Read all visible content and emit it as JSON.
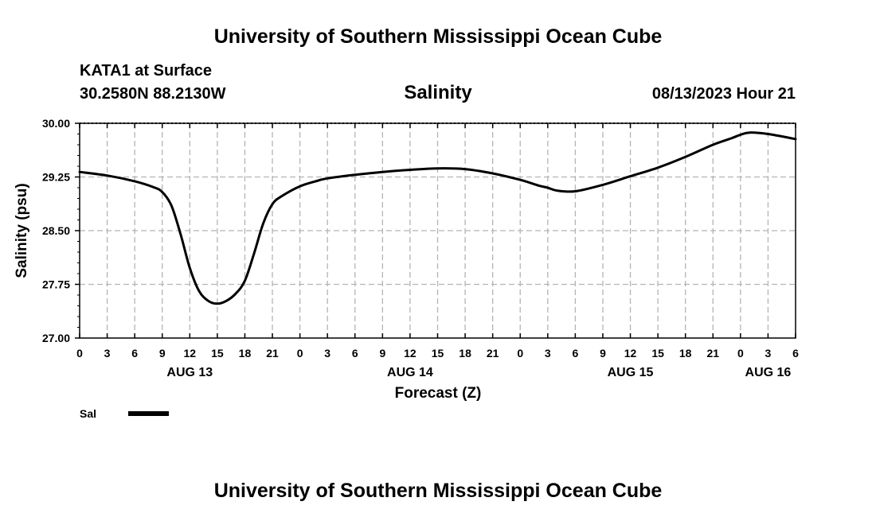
{
  "header": {
    "title": "University of Southern Mississippi Ocean Cube",
    "station": "KATA1 at Surface",
    "coords": "30.2580N  88.2130W",
    "datetime": "08/13/2023 Hour 21",
    "footer_title": "University of Southern Mississippi Ocean Cube"
  },
  "chart_data": {
    "type": "line",
    "title": "Salinity",
    "xlabel": "Forecast (Z)",
    "ylabel": "Salinity (psu)",
    "x_unit": "forecast hours since AUG 13 00Z",
    "xlim": [
      0,
      78
    ],
    "ylim": [
      27.0,
      30.0
    ],
    "y_ticks": [
      "27.00",
      "27.75",
      "28.50",
      "29.25",
      "30.00"
    ],
    "x_tick_labels": [
      "0",
      "3",
      "6",
      "9",
      "12",
      "15",
      "18",
      "21",
      "0",
      "3",
      "6",
      "9",
      "12",
      "15",
      "18",
      "21",
      "0",
      "3",
      "6",
      "9",
      "12",
      "15",
      "18",
      "21",
      "0",
      "3",
      "6"
    ],
    "day_labels": [
      {
        "label": "AUG 13",
        "hour": 12
      },
      {
        "label": "AUG 14",
        "hour": 36
      },
      {
        "label": "AUG 15",
        "hour": 60
      },
      {
        "label": "AUG 16",
        "hour": 75
      }
    ],
    "grid": true,
    "legend_position": "bottom-left",
    "series": [
      {
        "name": "Sal",
        "color": "#000000",
        "x": [
          0,
          3,
          6,
          8,
          9,
          10,
          11,
          12,
          13,
          14,
          15,
          16,
          17,
          18,
          19,
          20,
          21,
          22,
          24,
          26,
          27,
          30,
          33,
          36,
          39,
          42,
          45,
          48,
          50,
          51,
          52,
          54,
          57,
          60,
          63,
          66,
          69,
          71,
          72,
          73,
          75,
          78
        ],
        "y": [
          29.32,
          29.27,
          29.19,
          29.11,
          29.04,
          28.85,
          28.45,
          27.98,
          27.66,
          27.52,
          27.48,
          27.52,
          27.62,
          27.8,
          28.18,
          28.6,
          28.87,
          28.98,
          29.12,
          29.2,
          29.23,
          29.28,
          29.32,
          29.35,
          29.37,
          29.36,
          29.3,
          29.21,
          29.13,
          29.1,
          29.06,
          29.05,
          29.14,
          29.26,
          29.38,
          29.53,
          29.7,
          29.79,
          29.84,
          29.87,
          29.85,
          29.78
        ]
      }
    ]
  }
}
